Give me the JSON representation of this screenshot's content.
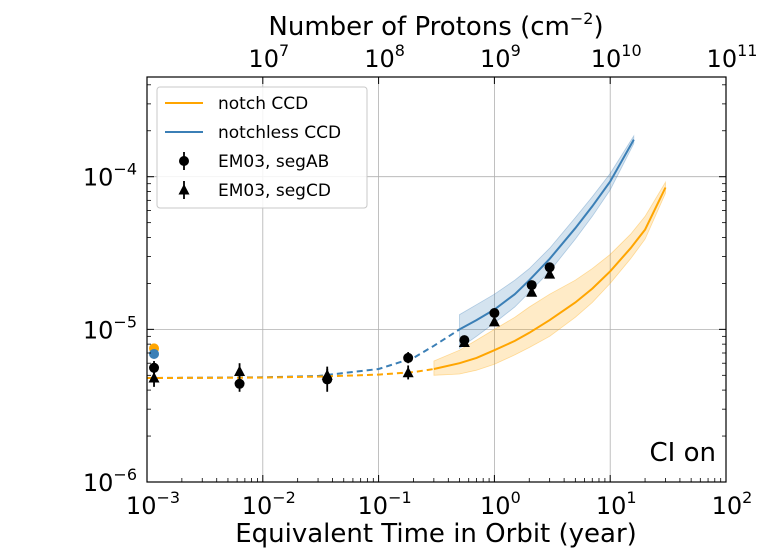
{
  "chart_data": {
    "type": "line",
    "title": "",
    "xlabel": "Equivalent Time in Orbit (year)",
    "x2label": "Number of Protons (cm",
    "x2label_exp": "−2",
    "x2label_close": ")",
    "ylabel": "",
    "xscale": "log",
    "yscale": "log",
    "xlim": [
      0.001,
      100
    ],
    "ylim": [
      1e-06,
      0.00045
    ],
    "x2lim": [
      1000000.0,
      100000000000.0
    ],
    "grid": true,
    "annotation": "CI on",
    "legend_position": "upper-left",
    "colors": {
      "notch": "#ffa500",
      "notchless": "#3b7fb6",
      "markers": "#000000"
    },
    "x_ticks": [
      {
        "value": 0.001,
        "base": "10",
        "exp": "−3"
      },
      {
        "value": 0.01,
        "base": "10",
        "exp": "−2"
      },
      {
        "value": 0.1,
        "base": "10",
        "exp": "−1"
      },
      {
        "value": 1,
        "base": "10",
        "exp": "0"
      },
      {
        "value": 10,
        "base": "10",
        "exp": "1"
      },
      {
        "value": 100,
        "base": "10",
        "exp": "2"
      }
    ],
    "y_ticks": [
      {
        "value": 1e-06,
        "base": "10",
        "exp": "−6"
      },
      {
        "value": 1e-05,
        "base": "10",
        "exp": "−5"
      },
      {
        "value": 0.0001,
        "base": "10",
        "exp": "−4"
      }
    ],
    "x2_ticks": [
      {
        "value": 10000000.0,
        "base": "10",
        "exp": "7"
      },
      {
        "value": 100000000.0,
        "base": "10",
        "exp": "8"
      },
      {
        "value": 1000000000.0,
        "base": "10",
        "exp": "9"
      },
      {
        "value": 10000000000.0,
        "base": "10",
        "exp": "10"
      },
      {
        "value": 100000000000.0,
        "base": "10",
        "exp": "11"
      }
    ],
    "legend": [
      {
        "label": "notch CCD",
        "kind": "line",
        "series": "notch"
      },
      {
        "label": "notchless CCD",
        "kind": "line",
        "series": "notchless"
      },
      {
        "label": "EM03, segAB",
        "kind": "circle"
      },
      {
        "label": "EM03, segCD",
        "kind": "triangle"
      }
    ],
    "series": [
      {
        "name": "notchless CCD",
        "color_key": "notchless",
        "dashed": {
          "x": [
            0.001,
            0.003,
            0.01,
            0.03,
            0.1,
            0.2,
            0.3,
            0.5
          ],
          "y": [
            4.8e-06,
            4.82e-06,
            4.85e-06,
            4.95e-06,
            5.5e-06,
            6.5e-06,
            7.8e-06,
            1e-05
          ]
        },
        "solid": {
          "x": [
            0.5,
            0.7,
            1,
            1.5,
            2,
            3,
            5,
            7,
            10,
            16
          ],
          "y": [
            1e-05,
            1.15e-05,
            1.35e-05,
            1.7e-05,
            2.1e-05,
            2.9e-05,
            4.6e-05,
            6.4e-05,
            9.3e-05,
            0.000175
          ]
        },
        "band": {
          "x": [
            0.5,
            0.7,
            1,
            1.5,
            2,
            3,
            5,
            7,
            10,
            16
          ],
          "lower": [
            7.5e-06,
            9e-06,
            1.1e-05,
            1.4e-05,
            1.75e-05,
            2.4e-05,
            3.9e-05,
            5.5e-05,
            8.2e-05,
            0.000165
          ],
          "upper": [
            1.25e-05,
            1.45e-05,
            1.7e-05,
            2.1e-05,
            2.5e-05,
            3.4e-05,
            5.4e-05,
            7.4e-05,
            0.000105,
            0.000185
          ]
        }
      },
      {
        "name": "notch CCD",
        "color_key": "notch",
        "dashed": {
          "x": [
            0.001,
            0.003,
            0.01,
            0.03,
            0.1,
            0.2,
            0.3
          ],
          "y": [
            4.8e-06,
            4.81e-06,
            4.83e-06,
            4.9e-06,
            5.05e-06,
            5.25e-06,
            5.5e-06
          ]
        },
        "solid": {
          "x": [
            0.3,
            0.5,
            0.7,
            1,
            1.5,
            2,
            3,
            5,
            7,
            10,
            15,
            20,
            30
          ],
          "y": [
            5.5e-06,
            6e-06,
            6.5e-06,
            7.3e-06,
            8.4e-06,
            9.5e-06,
            1.15e-05,
            1.5e-05,
            1.85e-05,
            2.4e-05,
            3.4e-05,
            4.5e-05,
            8.5e-05
          ]
        },
        "band": {
          "x": [
            0.3,
            0.5,
            0.7,
            1,
            1.5,
            2,
            3,
            5,
            7,
            10,
            15,
            20,
            30
          ],
          "lower": [
            5e-06,
            5.1e-06,
            5.4e-06,
            5.9e-06,
            6.8e-06,
            7.6e-06,
            9e-06,
            1.2e-05,
            1.5e-05,
            2e-05,
            2.9e-05,
            3.9e-05,
            7.8e-05
          ],
          "upper": [
            6.2e-06,
            7.3e-06,
            8.5e-06,
            1e-05,
            1.2e-05,
            1.4e-05,
            1.7e-05,
            2.1e-05,
            2.5e-05,
            3.1e-05,
            4.2e-05,
            5.5e-05,
            9.2e-05
          ]
        }
      },
      {
        "name": "EM03, segAB",
        "marker": "circle",
        "points": [
          {
            "x": 0.00115,
            "y": 5.6e-06,
            "lo": 5e-06,
            "hi": 6.2e-06
          },
          {
            "x": 0.0063,
            "y": 4.4e-06,
            "lo": 3.9e-06,
            "hi": 5e-06
          },
          {
            "x": 0.036,
            "y": 4.7e-06,
            "lo": 3.9e-06,
            "hi": 5.5e-06
          },
          {
            "x": 0.18,
            "y": 6.5e-06,
            "lo": 6e-06,
            "hi": 7.1e-06
          },
          {
            "x": 0.55,
            "y": 8.5e-06,
            "lo": 8e-06,
            "hi": 9.1e-06
          },
          {
            "x": 1.0,
            "y": 1.28e-05,
            "lo": 1.22e-05,
            "hi": 1.34e-05
          },
          {
            "x": 2.1,
            "y": 1.95e-05,
            "lo": 1.88e-05,
            "hi": 2.02e-05
          },
          {
            "x": 3.0,
            "y": 2.55e-05,
            "lo": 2.47e-05,
            "hi": 2.63e-05
          }
        ]
      },
      {
        "name": "EM03, segCD",
        "marker": "triangle",
        "points": [
          {
            "x": 0.00115,
            "y": 4.8e-06,
            "lo": 4.2e-06,
            "hi": 5.4e-06
          },
          {
            "x": 0.0063,
            "y": 5.3e-06,
            "lo": 4.7e-06,
            "hi": 6e-06
          },
          {
            "x": 0.036,
            "y": 5e-06,
            "lo": 4.4e-06,
            "hi": 5.7e-06
          },
          {
            "x": 0.18,
            "y": 5.2e-06,
            "lo": 4.7e-06,
            "hi": 5.8e-06
          },
          {
            "x": 0.55,
            "y": 8.2e-06,
            "lo": 7.7e-06,
            "hi": 8.8e-06
          },
          {
            "x": 1.0,
            "y": 1.12e-05,
            "lo": 1.06e-05,
            "hi": 1.18e-05
          },
          {
            "x": 2.1,
            "y": 1.75e-05,
            "lo": 1.68e-05,
            "hi": 1.82e-05
          },
          {
            "x": 3.0,
            "y": 2.3e-05,
            "lo": 2.22e-05,
            "hi": 2.38e-05
          }
        ]
      },
      {
        "name": "edge markers",
        "points": [
          {
            "x": 0.00115,
            "y": 7.5e-06,
            "color_key": "notch"
          },
          {
            "x": 0.00115,
            "y": 6.9e-06,
            "color_key": "notchless"
          }
        ]
      }
    ]
  }
}
